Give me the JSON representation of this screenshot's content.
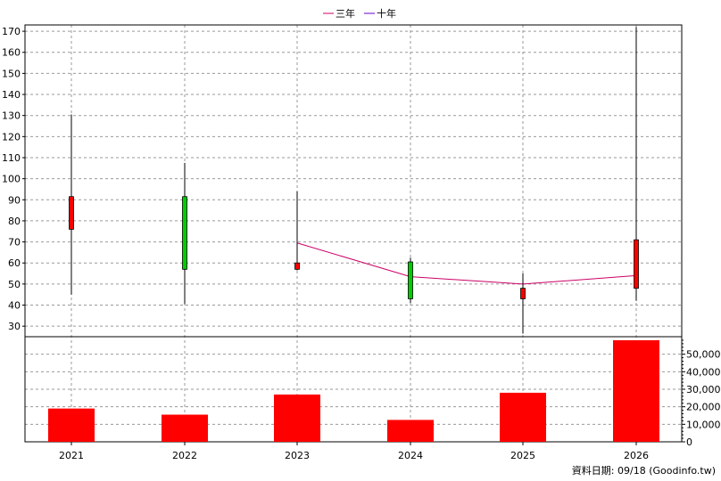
{
  "chart_data": {
    "type": "candlestick",
    "legend": {
      "placement": "top-center",
      "entries": [
        {
          "label": "三年",
          "color": "#cc0066"
        },
        {
          "label": "十年",
          "color": "#6600cc"
        }
      ]
    },
    "categories": [
      "2021",
      "2022",
      "2023",
      "2024",
      "2025",
      "2026"
    ],
    "price": {
      "ylim": [
        25,
        173
      ],
      "ticks": [
        30,
        40,
        50,
        60,
        70,
        80,
        90,
        100,
        110,
        120,
        130,
        140,
        150,
        160,
        170
      ],
      "candles": [
        {
          "year": "2021",
          "open": 76,
          "close": 91.5,
          "high": 130.5,
          "low": 45,
          "color": "#ff0000"
        },
        {
          "year": "2022",
          "open": 91.5,
          "close": 57,
          "high": 107.5,
          "low": 40.5,
          "color": "#00cc00"
        },
        {
          "year": "2023",
          "open": 57,
          "close": 60,
          "high": 94,
          "low": 56.5,
          "color": "#ff0000"
        },
        {
          "year": "2024",
          "open": 60.5,
          "close": 43,
          "high": 62.5,
          "low": 41,
          "color": "#00cc00"
        },
        {
          "year": "2025",
          "open": 43,
          "close": 48,
          "high": 55,
          "low": 26.5,
          "color": "#ff0000"
        },
        {
          "year": "2026",
          "open": 48,
          "close": 71,
          "high": 172,
          "low": 42,
          "color": "#ff0000"
        }
      ],
      "three_year_line": [
        {
          "year": "2023",
          "value": 69.5
        },
        {
          "year": "2024",
          "value": 53.5
        },
        {
          "year": "2025",
          "value": 50
        },
        {
          "year": "2026",
          "value": 54
        }
      ]
    },
    "volume": {
      "ylim": [
        0,
        60000
      ],
      "ticks": [
        0,
        10000,
        20000,
        30000,
        40000,
        50000
      ],
      "tick_labels": [
        "0",
        "10,000",
        "20,000",
        "30,000",
        "40,000",
        "50,000"
      ],
      "values": [
        19000,
        15500,
        27000,
        12500,
        28000,
        58000
      ],
      "color": "#ff0000"
    },
    "grid": true
  },
  "footer": "資料日期: 09/18  (Goodinfo.tw)"
}
